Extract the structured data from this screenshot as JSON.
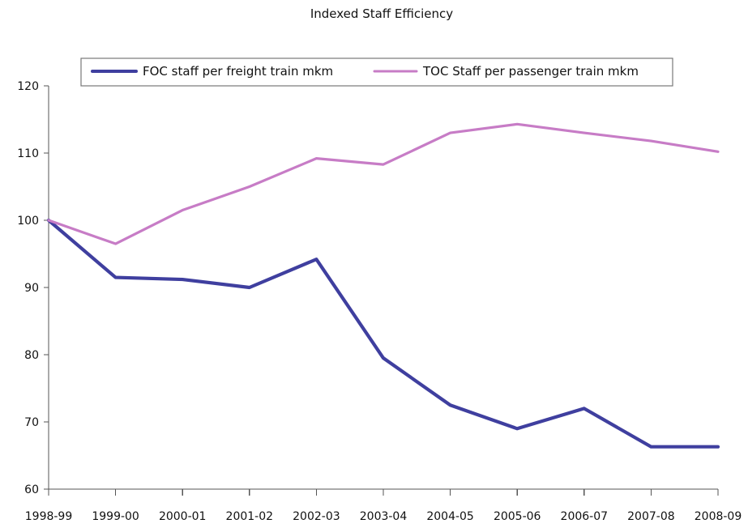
{
  "chart_data": {
    "type": "line",
    "title": "Indexed Staff Efficiency",
    "xlabel": "",
    "ylabel": "",
    "categories": [
      "1998-99",
      "1999-00",
      "2000-01",
      "2001-02",
      "2002-03",
      "2003-04",
      "2004-05",
      "2005-06",
      "2006-07",
      "2007-08",
      "2008-09"
    ],
    "ylim": [
      60,
      120
    ],
    "yticks": [
      60,
      70,
      80,
      90,
      100,
      110,
      120
    ],
    "grid": false,
    "legend_position": "top",
    "series": [
      {
        "name": "FOC staff per freight train mkm",
        "color": "#3f3f9f",
        "values": [
          100,
          91.5,
          91.2,
          90,
          94.2,
          79.5,
          72.5,
          69,
          72,
          66.3,
          66.3
        ]
      },
      {
        "name": "TOC Staff per passenger train mkm",
        "color": "#c77cc6",
        "values": [
          100,
          96.5,
          101.5,
          105,
          109.2,
          108.3,
          113,
          114.3,
          113,
          111.8,
          110.2
        ]
      }
    ]
  }
}
